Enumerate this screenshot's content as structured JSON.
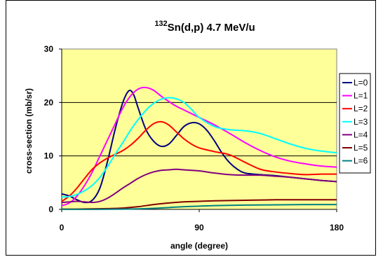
{
  "chart_data": {
    "type": "line",
    "title_sup": "132",
    "title_main": "Sn(d,p)  4.7 MeV/u",
    "xlabel": "angle (degree)",
    "ylabel": "cross-section (mb/sr)",
    "xlim": [
      0,
      180
    ],
    "ylim": [
      0,
      30
    ],
    "x_ticks": [
      "0",
      "90",
      "180"
    ],
    "y_ticks": [
      "0",
      "10",
      "20",
      "30"
    ],
    "grid": "horizontal",
    "plot_background": "#ffff99",
    "legend_position": "right",
    "series": [
      {
        "name": "L=0",
        "color": "#000080",
        "points": [
          [
            0,
            2.9
          ],
          [
            5,
            2.5
          ],
          [
            10,
            1.8
          ],
          [
            15,
            1.3
          ],
          [
            20,
            1.7
          ],
          [
            25,
            4
          ],
          [
            30,
            9
          ],
          [
            35,
            15
          ],
          [
            40,
            20
          ],
          [
            44,
            22.2
          ],
          [
            47,
            21.5
          ],
          [
            50,
            19
          ],
          [
            55,
            15
          ],
          [
            60,
            12.8
          ],
          [
            65,
            11.8
          ],
          [
            70,
            12.2
          ],
          [
            75,
            13.8
          ],
          [
            80,
            15.5
          ],
          [
            85,
            16.2
          ],
          [
            90,
            16
          ],
          [
            95,
            14.8
          ],
          [
            100,
            12.8
          ],
          [
            105,
            10.5
          ],
          [
            110,
            8.7
          ],
          [
            115,
            7.5
          ],
          [
            120,
            6.8
          ],
          [
            130,
            6.5
          ],
          [
            140,
            6.3
          ],
          [
            150,
            6
          ],
          [
            160,
            5.7
          ],
          [
            170,
            5.4
          ],
          [
            180,
            5.2
          ]
        ]
      },
      {
        "name": "L=1",
        "color": "#ff00ff",
        "points": [
          [
            0,
            0.7
          ],
          [
            5,
            1.2
          ],
          [
            10,
            2.5
          ],
          [
            15,
            4.5
          ],
          [
            20,
            7
          ],
          [
            25,
            10
          ],
          [
            30,
            13
          ],
          [
            35,
            16
          ],
          [
            40,
            19
          ],
          [
            45,
            21.2
          ],
          [
            50,
            22.5
          ],
          [
            55,
            22.8
          ],
          [
            60,
            22.3
          ],
          [
            65,
            21.2
          ],
          [
            70,
            20.2
          ],
          [
            75,
            19.3
          ],
          [
            80,
            18.6
          ],
          [
            90,
            17.2
          ],
          [
            100,
            15.8
          ],
          [
            110,
            14.2
          ],
          [
            120,
            12.5
          ],
          [
            130,
            11
          ],
          [
            140,
            9.8
          ],
          [
            150,
            9
          ],
          [
            160,
            8.5
          ],
          [
            170,
            8.1
          ],
          [
            180,
            7.9
          ]
        ]
      },
      {
        "name": "L=2",
        "color": "#ff0000",
        "points": [
          [
            0,
            1.5
          ],
          [
            5,
            2.5
          ],
          [
            10,
            4
          ],
          [
            15,
            5.8
          ],
          [
            20,
            7.5
          ],
          [
            25,
            8.7
          ],
          [
            30,
            9.6
          ],
          [
            35,
            10.3
          ],
          [
            40,
            11
          ],
          [
            45,
            12
          ],
          [
            50,
            13.3
          ],
          [
            55,
            14.8
          ],
          [
            60,
            16
          ],
          [
            65,
            16.4
          ],
          [
            70,
            15.8
          ],
          [
            75,
            14.5
          ],
          [
            80,
            13.2
          ],
          [
            85,
            12.2
          ],
          [
            90,
            11.5
          ],
          [
            100,
            10.8
          ],
          [
            110,
            10.2
          ],
          [
            120,
            8.8
          ],
          [
            130,
            7.5
          ],
          [
            140,
            7
          ],
          [
            150,
            6.7
          ],
          [
            160,
            6.5
          ],
          [
            170,
            6.6
          ],
          [
            180,
            6.6
          ]
        ]
      },
      {
        "name": "L=3",
        "color": "#00ffff",
        "points": [
          [
            0,
            2.3
          ],
          [
            5,
            2.4
          ],
          [
            10,
            2.8
          ],
          [
            15,
            3.5
          ],
          [
            20,
            4.5
          ],
          [
            25,
            6
          ],
          [
            30,
            8
          ],
          [
            35,
            10.3
          ],
          [
            40,
            12.5
          ],
          [
            45,
            14.8
          ],
          [
            50,
            16.8
          ],
          [
            55,
            18.5
          ],
          [
            60,
            19.8
          ],
          [
            65,
            20.6
          ],
          [
            70,
            20.9
          ],
          [
            75,
            20.7
          ],
          [
            80,
            20
          ],
          [
            85,
            18.7
          ],
          [
            90,
            17.2
          ],
          [
            100,
            15.5
          ],
          [
            110,
            14.9
          ],
          [
            120,
            14.7
          ],
          [
            130,
            14.2
          ],
          [
            140,
            13.2
          ],
          [
            150,
            12.2
          ],
          [
            160,
            11.4
          ],
          [
            170,
            10.9
          ],
          [
            180,
            10.6
          ]
        ]
      },
      {
        "name": "L=4",
        "color": "#800080",
        "points": [
          [
            0,
            1.3
          ],
          [
            5,
            1.4
          ],
          [
            10,
            1.5
          ],
          [
            15,
            1.4
          ],
          [
            20,
            1.3
          ],
          [
            25,
            1.5
          ],
          [
            30,
            2.1
          ],
          [
            35,
            3
          ],
          [
            40,
            4
          ],
          [
            45,
            4.9
          ],
          [
            50,
            5.8
          ],
          [
            55,
            6.5
          ],
          [
            60,
            7
          ],
          [
            65,
            7.3
          ],
          [
            70,
            7.4
          ],
          [
            75,
            7.5
          ],
          [
            80,
            7.4
          ],
          [
            90,
            7.2
          ],
          [
            100,
            6.8
          ],
          [
            110,
            6.5
          ],
          [
            120,
            6.4
          ],
          [
            130,
            6.4
          ],
          [
            140,
            6.2
          ],
          [
            150,
            6
          ],
          [
            160,
            5.7
          ],
          [
            170,
            5.4
          ],
          [
            180,
            5.2
          ]
        ]
      },
      {
        "name": "L=5",
        "color": "#800000",
        "points": [
          [
            0,
            0.05
          ],
          [
            10,
            0.05
          ],
          [
            20,
            0.1
          ],
          [
            30,
            0.15
          ],
          [
            40,
            0.25
          ],
          [
            50,
            0.5
          ],
          [
            60,
            0.9
          ],
          [
            70,
            1.2
          ],
          [
            80,
            1.4
          ],
          [
            90,
            1.5
          ],
          [
            100,
            1.6
          ],
          [
            120,
            1.7
          ],
          [
            140,
            1.8
          ],
          [
            160,
            1.8
          ],
          [
            180,
            1.8
          ]
        ]
      },
      {
        "name": "L=6",
        "color": "#008080",
        "points": [
          [
            0,
            0
          ],
          [
            20,
            0
          ],
          [
            40,
            0.05
          ],
          [
            50,
            0.1
          ],
          [
            60,
            0.2
          ],
          [
            70,
            0.35
          ],
          [
            80,
            0.5
          ],
          [
            90,
            0.6
          ],
          [
            100,
            0.7
          ],
          [
            120,
            0.8
          ],
          [
            140,
            0.85
          ],
          [
            160,
            0.9
          ],
          [
            180,
            0.9
          ]
        ]
      }
    ]
  }
}
